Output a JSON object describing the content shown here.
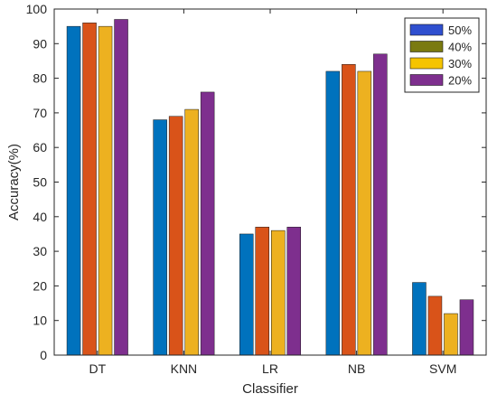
{
  "chart_data": {
    "type": "bar",
    "title": "",
    "xlabel": "Classifier",
    "ylabel": "Accuracy(%)",
    "ylim": [
      0,
      100
    ],
    "yticks": [
      0,
      10,
      20,
      30,
      40,
      50,
      60,
      70,
      80,
      90,
      100
    ],
    "grid": false,
    "legend_position": "top-right",
    "categories": [
      "DT",
      "KNN",
      "LR",
      "NB",
      "SVM"
    ],
    "series": [
      {
        "name": "50%",
        "values": [
          95,
          68,
          35,
          82,
          21
        ],
        "color": "#0072BD"
      },
      {
        "name": "40%",
        "values": [
          96,
          69,
          37,
          84,
          17
        ],
        "color": "#D95319"
      },
      {
        "name": "30%",
        "values": [
          95,
          71,
          36,
          82,
          12
        ],
        "color": "#EDB120"
      },
      {
        "name": "20%",
        "values": [
          97,
          76,
          37,
          87,
          16
        ],
        "color": "#7E2F8E"
      }
    ]
  },
  "legend_swatch_colors": [
    "#2F4FCF",
    "#7A7A10",
    "#F5C400",
    "#7E2F8E"
  ]
}
